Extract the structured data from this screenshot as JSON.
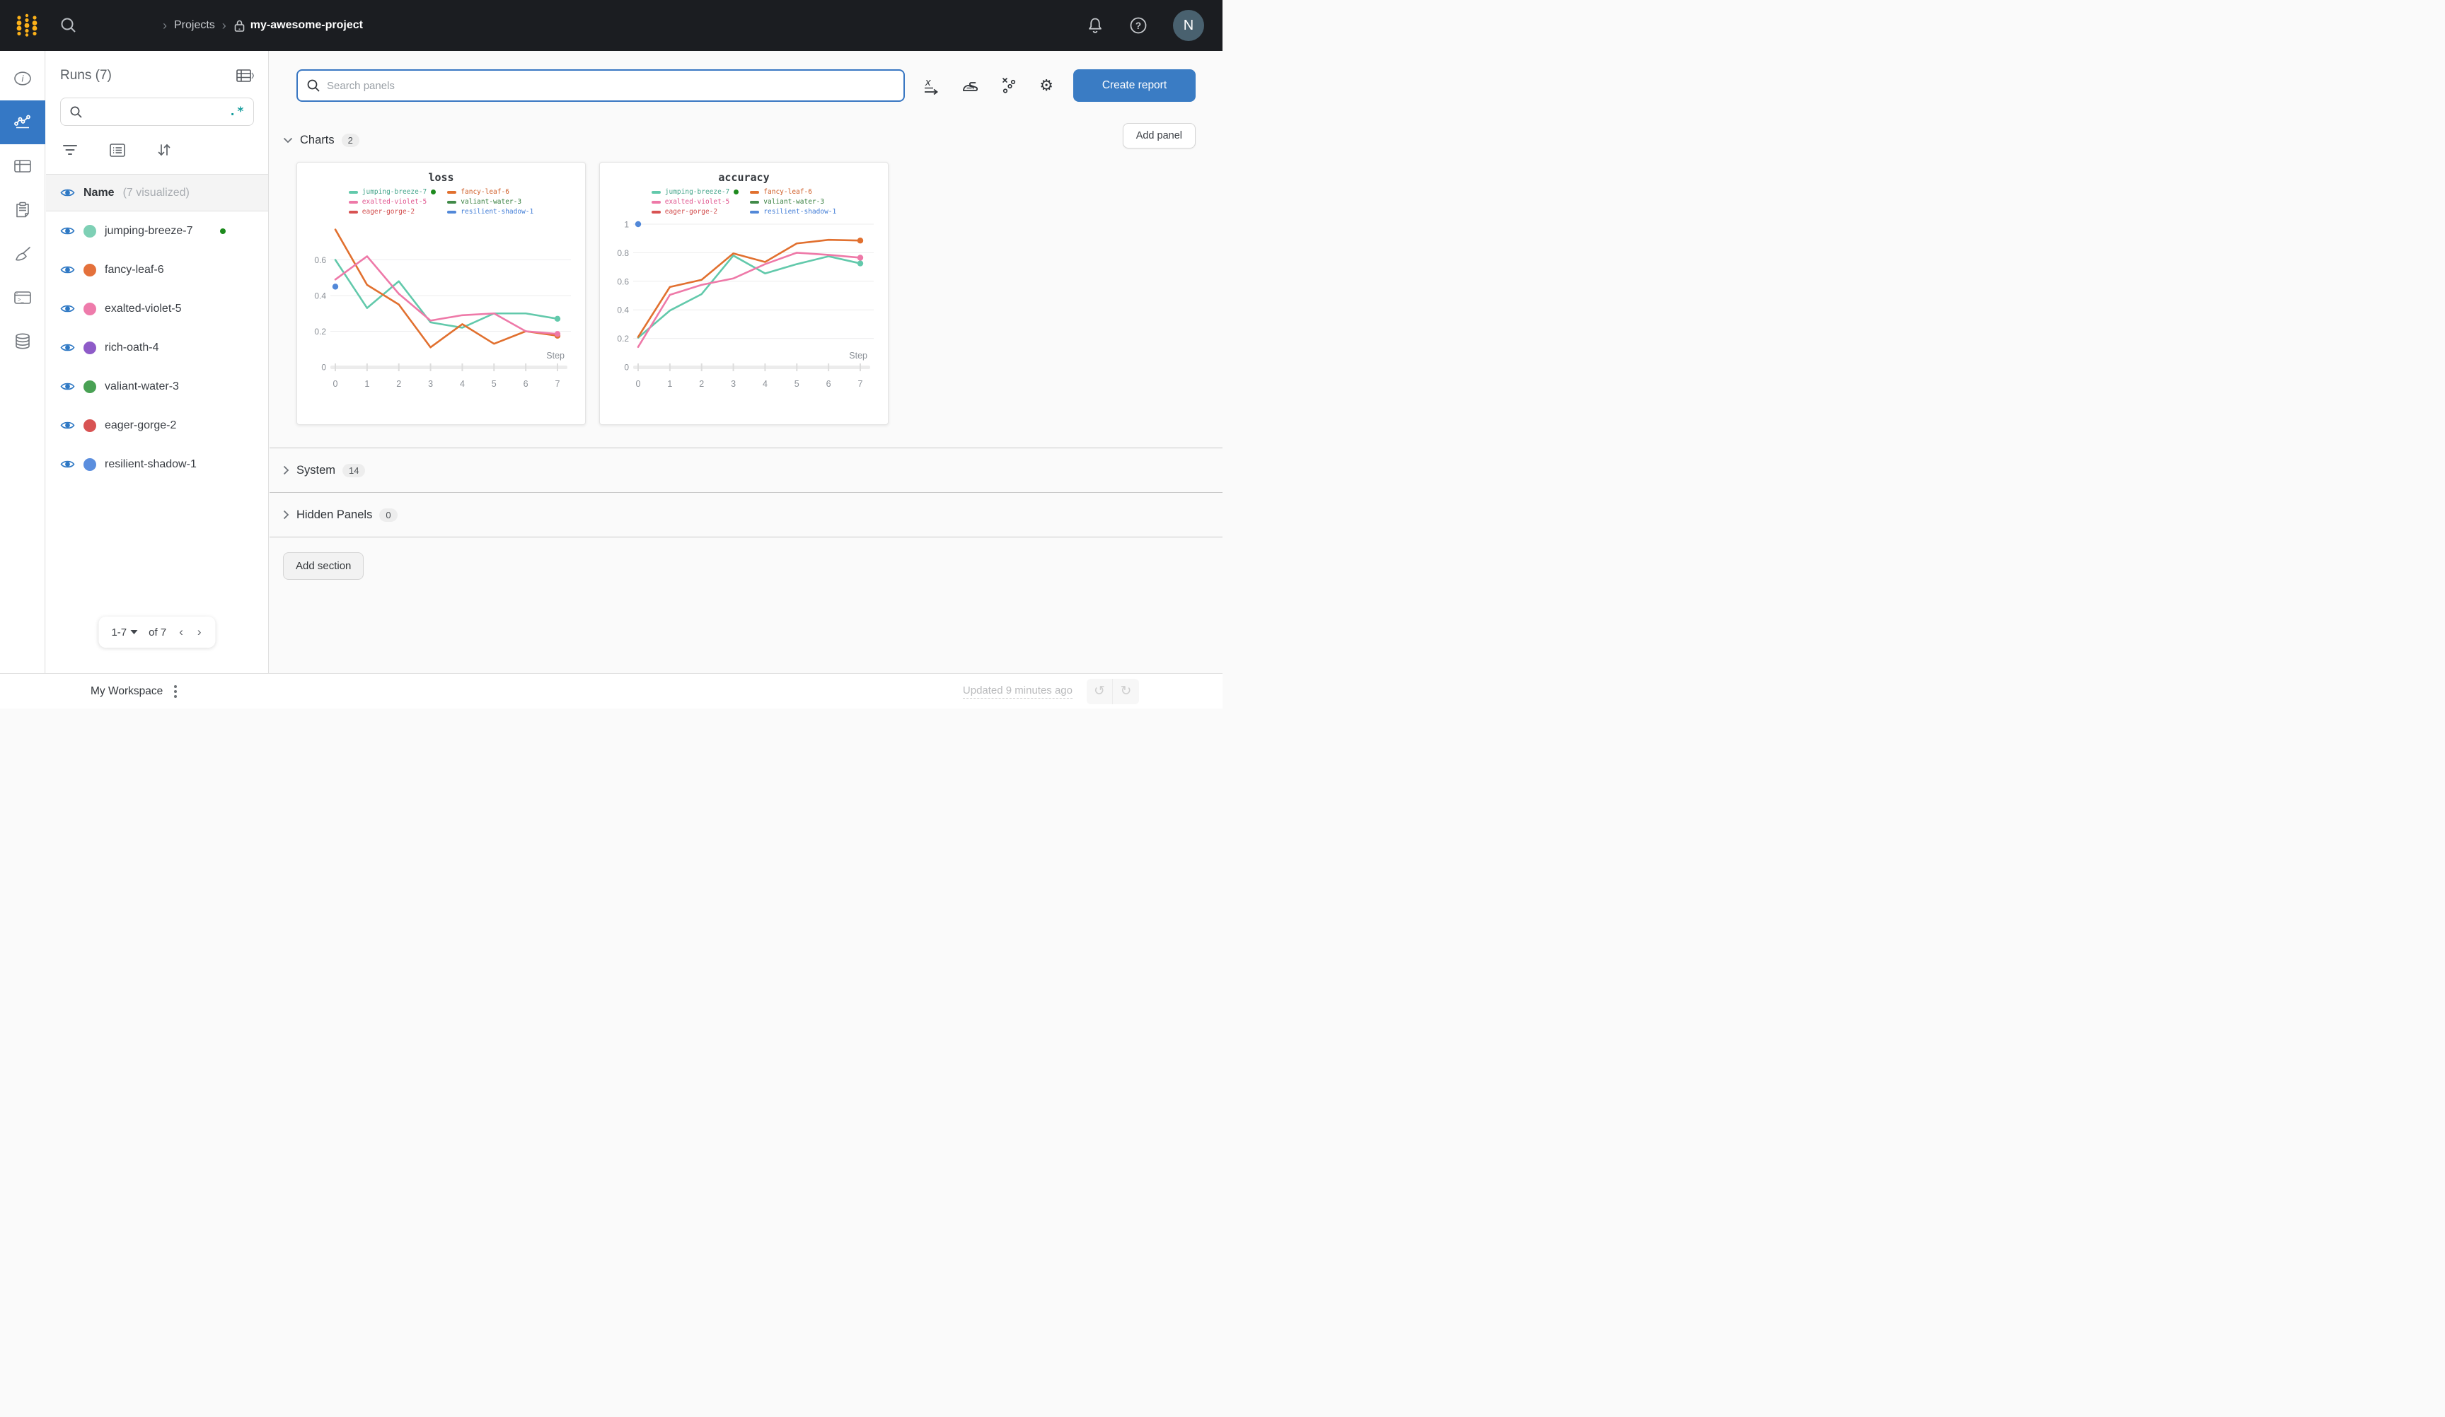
{
  "topbar": {
    "breadcrumb": {
      "sep": "›",
      "projects": "Projects",
      "project": "my-awesome-project"
    },
    "avatar": "N"
  },
  "runs_panel": {
    "title": "Runs (7)",
    "search_placeholder": "",
    "regex_label": ".*",
    "header": {
      "name": "Name",
      "suffix": "(7 visualized)"
    },
    "runs": [
      {
        "name": "jumping-breeze-7",
        "color": "#7ed0b5",
        "active": true
      },
      {
        "name": "fancy-leaf-6",
        "color": "#e4713b",
        "active": false
      },
      {
        "name": "exalted-violet-5",
        "color": "#ee7bab",
        "active": false
      },
      {
        "name": "rich-oath-4",
        "color": "#8e5bc8",
        "active": false
      },
      {
        "name": "valiant-water-3",
        "color": "#49a154",
        "active": false
      },
      {
        "name": "eager-gorge-2",
        "color": "#d85353",
        "active": false
      },
      {
        "name": "resilient-shadow-1",
        "color": "#5b8ede",
        "active": false
      }
    ],
    "pagination": {
      "range": "1-7",
      "of": "of 7",
      "prev": "‹",
      "next": "›"
    }
  },
  "main": {
    "search_placeholder": "Search panels",
    "create_report_label": "Create report",
    "add_panel_label": "Add panel",
    "add_section_label": "Add section",
    "sections": {
      "charts": {
        "label": "Charts",
        "count": "2"
      },
      "system": {
        "label": "System",
        "count": "14"
      },
      "hidden": {
        "label": "Hidden Panels",
        "count": "0"
      }
    }
  },
  "footer": {
    "workspace": "My Workspace",
    "updated": "Updated 9 minutes ago",
    "undo": "↺",
    "redo": "↻"
  },
  "colors": {
    "accent_blue": "#3578c5",
    "topbar_bg": "#1b1d21",
    "logo_yellow": "#fcb119",
    "eye_blue": "#2e78c4",
    "regex_teal": "#149c9c",
    "active_green": "#1d8a1d"
  },
  "chart_data": [
    {
      "type": "line",
      "title": "loss",
      "xlabel": "Step",
      "x": [
        0,
        1,
        2,
        3,
        4,
        5,
        6,
        7
      ],
      "ylim": [
        0,
        0.8
      ],
      "yticks": [
        0,
        0.2,
        0.4,
        0.6
      ],
      "grid": true,
      "legend_position": "top",
      "series": [
        {
          "name": "jumping-breeze-7",
          "color": "#62c9ab",
          "tcolor": "#45a58b",
          "active": true,
          "end_dot": true,
          "values": [
            0.6,
            0.33,
            0.48,
            0.25,
            0.22,
            0.3,
            0.3,
            0.27
          ]
        },
        {
          "name": "fancy-leaf-6",
          "color": "#e1702f",
          "tcolor": "#cf5d27",
          "active": false,
          "end_dot": true,
          "values": [
            0.77,
            0.46,
            0.35,
            0.11,
            0.24,
            0.13,
            0.2,
            0.175
          ]
        },
        {
          "name": "exalted-violet-5",
          "color": "#ee79a8",
          "tcolor": "#e0568f",
          "active": false,
          "end_dot": true,
          "values": [
            0.49,
            0.62,
            0.41,
            0.26,
            0.29,
            0.3,
            0.2,
            0.185
          ]
        },
        {
          "name": "valiant-water-3",
          "color": "#418a48",
          "tcolor": "#377f3f",
          "active": false,
          "end_dot": false,
          "values": null
        },
        {
          "name": "eager-gorge-2",
          "color": "#d85252",
          "tcolor": "#d14b4b",
          "active": false,
          "end_dot": false,
          "values": null
        },
        {
          "name": "resilient-shadow-1",
          "color": "#5288d8",
          "tcolor": "#3f7bd6",
          "active": false,
          "end_dot": false,
          "point_only": true,
          "values": [
            0.45
          ]
        }
      ]
    },
    {
      "type": "line",
      "title": "accuracy",
      "xlabel": "Step",
      "x": [
        0,
        1,
        2,
        3,
        4,
        5,
        6,
        7
      ],
      "ylim": [
        0,
        1.0
      ],
      "yticks": [
        0,
        0.2,
        0.4,
        0.6,
        0.8,
        1
      ],
      "grid": true,
      "legend_position": "top",
      "series": [
        {
          "name": "jumping-breeze-7",
          "color": "#62c9ab",
          "tcolor": "#45a58b",
          "active": true,
          "end_dot": true,
          "values": [
            0.205,
            0.395,
            0.51,
            0.78,
            0.655,
            0.72,
            0.775,
            0.725
          ]
        },
        {
          "name": "fancy-leaf-6",
          "color": "#e1702f",
          "tcolor": "#cf5d27",
          "active": false,
          "end_dot": true,
          "values": [
            0.21,
            0.56,
            0.61,
            0.795,
            0.735,
            0.865,
            0.89,
            0.885
          ]
        },
        {
          "name": "exalted-violet-5",
          "color": "#ee79a8",
          "tcolor": "#e0568f",
          "active": false,
          "end_dot": true,
          "values": [
            0.14,
            0.505,
            0.575,
            0.62,
            0.72,
            0.8,
            0.785,
            0.765
          ]
        },
        {
          "name": "valiant-water-3",
          "color": "#418a48",
          "tcolor": "#377f3f",
          "active": false,
          "end_dot": false,
          "values": null
        },
        {
          "name": "eager-gorge-2",
          "color": "#d85252",
          "tcolor": "#d14b4b",
          "active": false,
          "end_dot": false,
          "values": null
        },
        {
          "name": "resilient-shadow-1",
          "color": "#5288d8",
          "tcolor": "#3f7bd6",
          "active": false,
          "end_dot": false,
          "point_only": true,
          "values": [
            1.0
          ]
        }
      ]
    }
  ]
}
